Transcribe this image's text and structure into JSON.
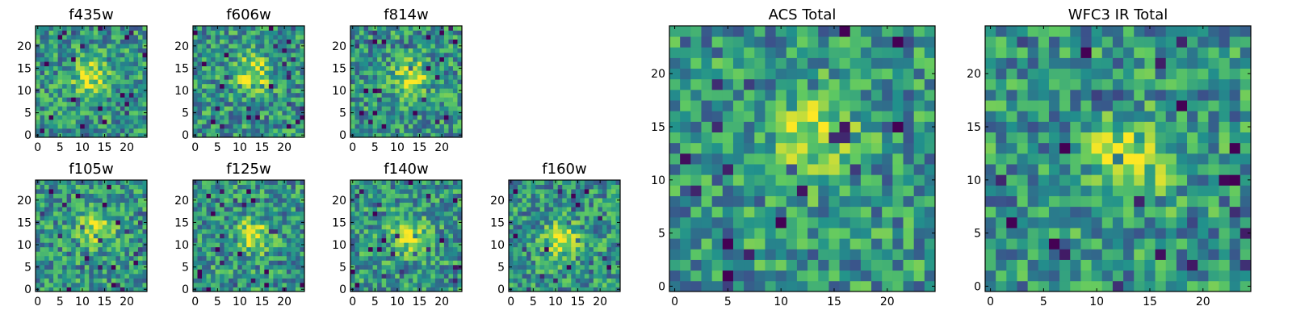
{
  "figure": {
    "colormap": "viridis",
    "colormap_stops": [
      "#440154",
      "#3b528b",
      "#21918c",
      "#5ec962",
      "#fde725"
    ]
  },
  "chart_data": [
    {
      "type": "heatmap",
      "title": "f435w",
      "grid_size": [
        25,
        25
      ],
      "xlim": [
        -0.5,
        24.5
      ],
      "ylim": [
        -0.5,
        24.5
      ],
      "xticks": [
        0,
        5,
        10,
        15,
        20
      ],
      "yticks": [
        0,
        5,
        10,
        15,
        20
      ],
      "source_peak": [
        12,
        13
      ],
      "noise_seed": 11
    },
    {
      "type": "heatmap",
      "title": "f606w",
      "grid_size": [
        25,
        25
      ],
      "xlim": [
        -0.5,
        24.5
      ],
      "ylim": [
        -0.5,
        24.5
      ],
      "xticks": [
        0,
        5,
        10,
        15,
        20
      ],
      "yticks": [
        0,
        5,
        10,
        15,
        20
      ],
      "source_peak": [
        13,
        14
      ],
      "noise_seed": 22
    },
    {
      "type": "heatmap",
      "title": "f814w",
      "grid_size": [
        25,
        25
      ],
      "xlim": [
        -0.5,
        24.5
      ],
      "ylim": [
        -0.5,
        24.5
      ],
      "xticks": [
        0,
        5,
        10,
        15,
        20
      ],
      "yticks": [
        0,
        5,
        10,
        15,
        20
      ],
      "source_peak": [
        13,
        13
      ],
      "noise_seed": 33
    },
    {
      "type": "heatmap",
      "title": "f105w",
      "grid_size": [
        25,
        25
      ],
      "xlim": [
        -0.5,
        24.5
      ],
      "ylim": [
        -0.5,
        24.5
      ],
      "xticks": [
        0,
        5,
        10,
        15,
        20
      ],
      "yticks": [
        0,
        5,
        10,
        15,
        20
      ],
      "source_peak": [
        13,
        14
      ],
      "noise_seed": 44
    },
    {
      "type": "heatmap",
      "title": "f125w",
      "grid_size": [
        25,
        25
      ],
      "xlim": [
        -0.5,
        24.5
      ],
      "ylim": [
        -0.5,
        24.5
      ],
      "xticks": [
        0,
        5,
        10,
        15,
        20
      ],
      "yticks": [
        0,
        5,
        10,
        15,
        20
      ],
      "source_peak": [
        13,
        12
      ],
      "noise_seed": 55
    },
    {
      "type": "heatmap",
      "title": "f140w",
      "grid_size": [
        25,
        25
      ],
      "xlim": [
        -0.5,
        24.5
      ],
      "ylim": [
        -0.5,
        24.5
      ],
      "xticks": [
        0,
        5,
        10,
        15,
        20
      ],
      "yticks": [
        0,
        5,
        10,
        15,
        20
      ],
      "source_peak": [
        13,
        12
      ],
      "noise_seed": 66
    },
    {
      "type": "heatmap",
      "title": "f160w",
      "grid_size": [
        25,
        25
      ],
      "xlim": [
        -0.5,
        24.5
      ],
      "ylim": [
        -0.5,
        24.5
      ],
      "xticks": [
        0,
        5,
        10,
        15,
        20
      ],
      "yticks": [
        0,
        5,
        10,
        15,
        20
      ],
      "source_peak": [
        11,
        11
      ],
      "noise_seed": 77
    },
    {
      "type": "heatmap",
      "title": "ACS Total",
      "grid_size": [
        25,
        25
      ],
      "xlim": [
        -0.5,
        24.5
      ],
      "ylim": [
        -0.5,
        24.5
      ],
      "xticks": [
        0,
        5,
        10,
        15,
        20
      ],
      "yticks": [
        0,
        5,
        10,
        15,
        20
      ],
      "source_peak": [
        13,
        14
      ],
      "noise_seed": 88
    },
    {
      "type": "heatmap",
      "title": "WFC3 IR Total",
      "grid_size": [
        25,
        25
      ],
      "xlim": [
        -0.5,
        24.5
      ],
      "ylim": [
        -0.5,
        24.5
      ],
      "xticks": [
        0,
        5,
        10,
        15,
        20
      ],
      "yticks": [
        0,
        5,
        10,
        15,
        20
      ],
      "source_peak": [
        13,
        12
      ],
      "noise_seed": 99
    }
  ]
}
